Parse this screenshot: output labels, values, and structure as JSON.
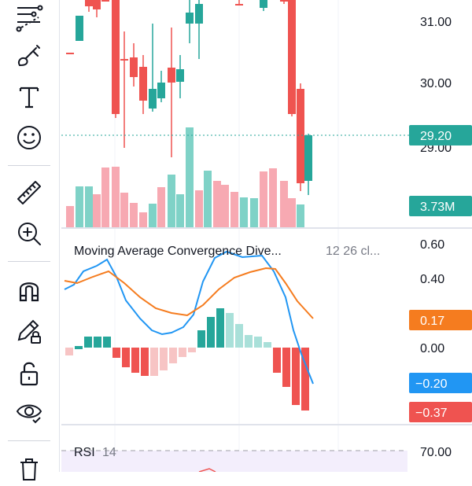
{
  "toolbar": {
    "tools": [
      {
        "name": "trend-line-tools",
        "icon": "pattern-icon"
      },
      {
        "name": "brush-tool",
        "icon": "brush-icon"
      },
      {
        "name": "text-tool",
        "icon": "text-icon"
      },
      {
        "name": "emoji-tool",
        "icon": "smiley-icon"
      },
      {
        "name": "measure-tool",
        "icon": "ruler-icon"
      },
      {
        "name": "zoom-tool",
        "icon": "zoom-in-icon"
      },
      {
        "name": "magnet-tool",
        "icon": "magnet-icon"
      },
      {
        "name": "lock-drawing-tool",
        "icon": "pencil-lock-icon"
      },
      {
        "name": "lock-all-tool",
        "icon": "unlock-icon"
      },
      {
        "name": "visibility-tool",
        "icon": "eye-icon"
      },
      {
        "name": "remove-tool",
        "icon": "trash-icon"
      }
    ]
  },
  "price_pane": {
    "axis_labels": [
      "31.00",
      "30.00",
      "29.00"
    ],
    "last_price": "29.20",
    "volume_label": "3.73M",
    "colors": {
      "up": "#26a69a",
      "down": "#ef5350",
      "up_volume": "#7fd2c7",
      "down_volume": "#f7a9b2",
      "last_price_line": "#26a69a"
    }
  },
  "macd_pane": {
    "title": "Moving Average Convergence Dive...",
    "params": "12 26 cl...",
    "axis_labels": [
      "0.60",
      "0.40",
      "0.00"
    ],
    "signal_value": "0.17",
    "macd_value": "−0.20",
    "histogram_value": "−0.37",
    "colors": {
      "macd_line": "#2196f3",
      "signal_line": "#f57c1f",
      "hist_up_strong": "#26a69a",
      "hist_up_weak": "#a9e0d9",
      "hist_down_strong": "#ef5350",
      "hist_down_weak": "#f7c4c4"
    }
  },
  "rsi_pane": {
    "title": "RSI",
    "params": "14",
    "axis_label": "70.00"
  }
}
